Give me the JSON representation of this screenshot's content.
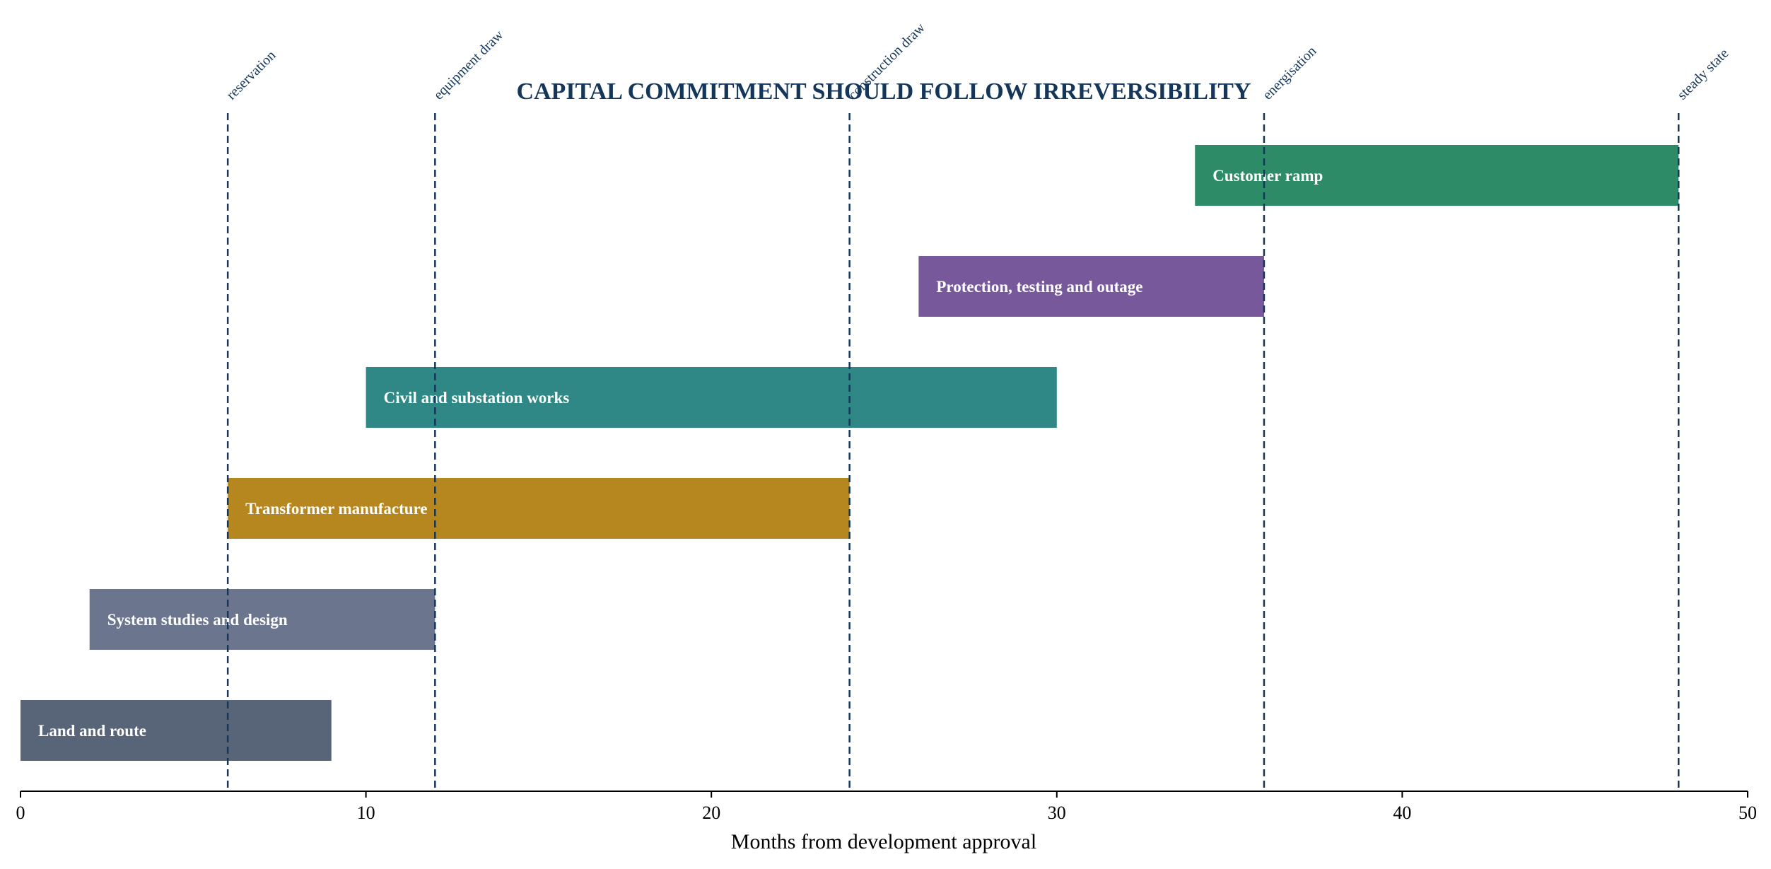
{
  "chart_data": {
    "type": "bar",
    "orientation": "horizontal-gantt",
    "title": "CAPITAL COMMITMENT SHOULD FOLLOW IRREVERSIBILITY",
    "xlabel": "Months from development approval",
    "ylabel": "",
    "xlim": [
      0,
      50
    ],
    "x_ticks": [
      0,
      10,
      20,
      30,
      40,
      50
    ],
    "grid": false,
    "tasks": [
      {
        "name": "Land and route",
        "start": 0,
        "end": 9,
        "color": "#586478"
      },
      {
        "name": "System studies and design",
        "start": 2,
        "end": 12,
        "color": "#6b768e"
      },
      {
        "name": "Transformer manufacture",
        "start": 6,
        "end": 24,
        "color": "#b5871e"
      },
      {
        "name": "Civil and substation works",
        "start": 10,
        "end": 30,
        "color": "#2f8885"
      },
      {
        "name": "Protection, testing and outage",
        "start": 26,
        "end": 36,
        "color": "#76589b"
      },
      {
        "name": "Customer ramp",
        "start": 34,
        "end": 48,
        "color": "#2d8b67"
      }
    ],
    "milestones": [
      {
        "label": "reservation",
        "x": 6
      },
      {
        "label": "equipment draw",
        "x": 12
      },
      {
        "label": "construction draw",
        "x": 24
      },
      {
        "label": "energisation",
        "x": 36
      },
      {
        "label": "steady state",
        "x": 48
      }
    ],
    "milestone_color": "#14365a"
  }
}
